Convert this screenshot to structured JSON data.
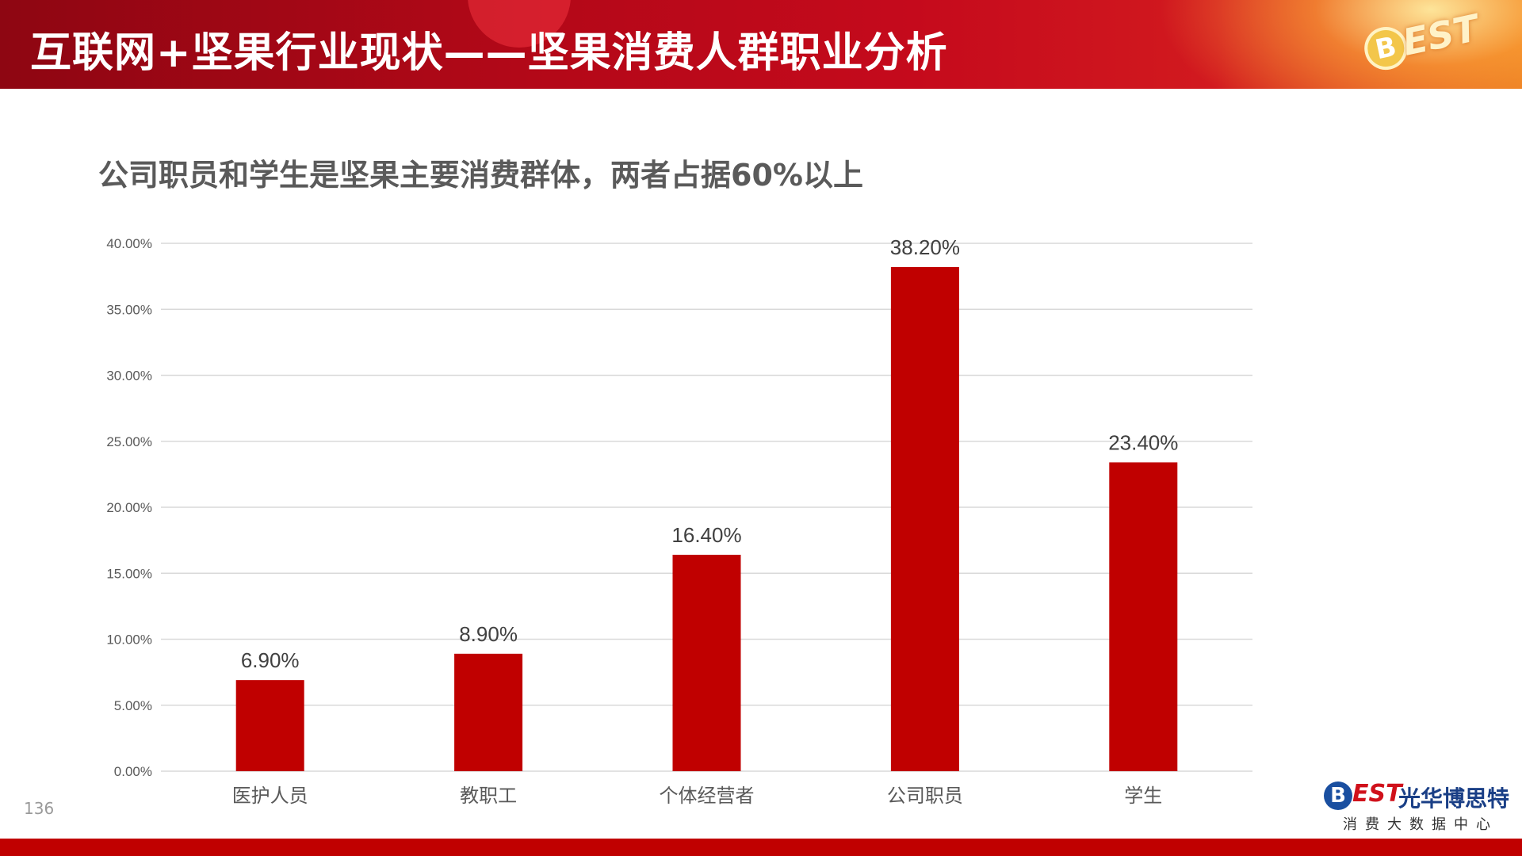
{
  "header": {
    "title": "互联网+坚果行业现状——坚果消费人群职业分析",
    "logo_mark": "B",
    "logo_word": "EST"
  },
  "subtitle": "公司职员和学生是坚果主要消费群体，两者占据60%以上",
  "chart_data": {
    "type": "bar",
    "categories": [
      "医护人员",
      "教职工",
      "个体经营者",
      "公司职员",
      "学生"
    ],
    "values": [
      6.9,
      8.9,
      16.4,
      38.2,
      23.4
    ],
    "data_labels": [
      "6.90%",
      "8.90%",
      "16.40%",
      "38.20%",
      "23.40%"
    ],
    "y_ticks": [
      "0.00%",
      "5.00%",
      "10.00%",
      "15.00%",
      "20.00%",
      "25.00%",
      "30.00%",
      "35.00%",
      "40.00%"
    ],
    "ylim": [
      0,
      40
    ],
    "grid": true,
    "bar_color": "#c00000"
  },
  "footer": {
    "page_number": "136",
    "logo_mark": "B",
    "logo_word": "EST",
    "logo_cn": "光华博思特",
    "logo_tagline": "消费大数据中心"
  },
  "colors": {
    "accent": "#c00000",
    "grid": "#d9d9d9",
    "axis_text": "#595959"
  }
}
